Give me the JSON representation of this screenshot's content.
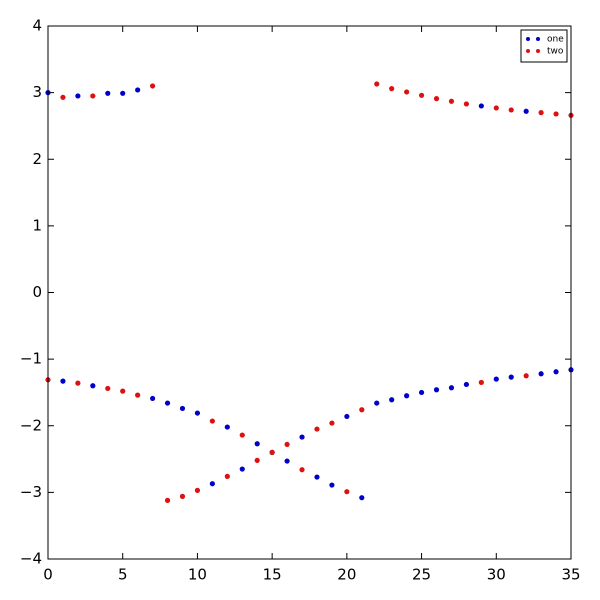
{
  "chart_data": {
    "type": "scatter",
    "x": [
      0,
      1,
      2,
      3,
      4,
      5,
      6,
      7,
      8,
      9,
      10,
      11,
      12,
      13,
      14,
      15,
      16,
      17,
      18,
      19,
      20,
      21,
      22,
      23,
      24,
      25,
      26,
      27,
      28,
      29,
      30,
      31,
      32,
      33,
      34,
      35
    ],
    "series": [
      {
        "name": "one",
        "color": "#0000cc",
        "values": [
          3.0,
          -1.33,
          2.95,
          -1.4,
          2.99,
          2.99,
          3.04,
          -1.59,
          -1.66,
          -1.74,
          -1.81,
          -2.87,
          -2.02,
          -2.65,
          -2.27,
          -2.4,
          -2.53,
          -2.17,
          -2.77,
          -2.89,
          -1.86,
          -3.08,
          -1.66,
          -1.61,
          -1.55,
          -1.5,
          -1.46,
          -1.43,
          -1.38,
          2.8,
          -1.3,
          -1.27,
          2.72,
          -1.22,
          -1.19,
          -1.16
        ]
      },
      {
        "name": "two",
        "color": "#dd1111",
        "values": [
          -1.31,
          2.93,
          -1.36,
          2.95,
          -1.44,
          -1.48,
          -1.54,
          3.1,
          -3.12,
          -3.06,
          -2.97,
          -1.93,
          -2.76,
          -2.14,
          -2.52,
          -2.4,
          -2.28,
          -2.66,
          -2.05,
          -1.96,
          -2.99,
          -1.76,
          3.13,
          3.06,
          3.01,
          2.96,
          2.91,
          2.87,
          2.83,
          -1.35,
          2.77,
          2.74,
          -1.25,
          2.7,
          2.68,
          2.66
        ]
      }
    ],
    "xlim": [
      0,
      35
    ],
    "xticks": [
      0,
      5,
      10,
      15,
      20,
      25,
      30,
      35
    ],
    "ylim": [
      -4,
      4
    ],
    "yticks": [
      {
        "value": -4,
        "label": "−4"
      },
      {
        "value": -3,
        "label": "−3"
      },
      {
        "value": -2,
        "label": "−2"
      },
      {
        "value": -1,
        "label": "−1"
      },
      0,
      1,
      2,
      3,
      4
    ],
    "grid": false,
    "legend": "upper right"
  }
}
